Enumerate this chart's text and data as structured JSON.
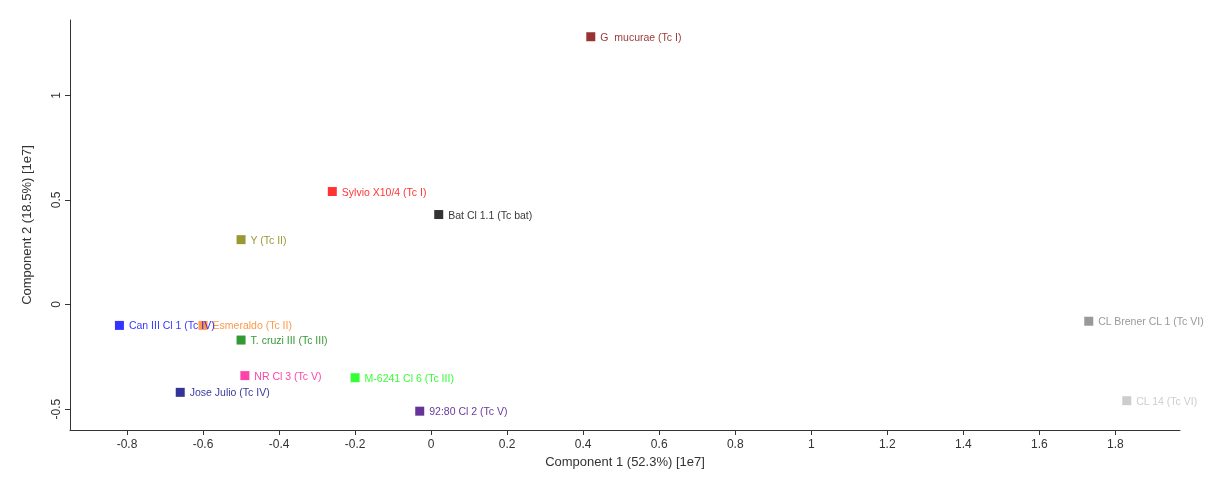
{
  "chart_data": {
    "type": "scatter",
    "xlabel": "Component 1 (52.3%) [1e7]",
    "ylabel": "Component 2 (18.5%) [1e7]",
    "xlim": [
      -0.95,
      1.97
    ],
    "ylim": [
      -0.6,
      1.36
    ],
    "xticks": [
      -0.8,
      -0.6,
      -0.4,
      -0.2,
      0,
      0.2,
      0.4,
      0.6,
      0.8,
      1,
      1.2,
      1.4,
      1.6,
      1.8
    ],
    "yticks": [
      -0.5,
      0,
      0.5,
      1
    ],
    "marker": "square",
    "grid": false,
    "legend": false,
    "series": [
      {
        "name": "G  mucurae (Tc I)",
        "color": "#7f0000",
        "x": [
          0.42
        ],
        "values": [
          1.28
        ]
      },
      {
        "name": "Sylvio X10/4 (Tc I)",
        "color": "#ff0000",
        "x": [
          -0.26
        ],
        "values": [
          0.54
        ]
      },
      {
        "name": "Bat Cl 1.1 (Tc bat)",
        "color": "#000000",
        "x": [
          0.02
        ],
        "values": [
          0.43
        ]
      },
      {
        "name": "Y (Tc II)",
        "color": "#808000",
        "x": [
          -0.5
        ],
        "values": [
          0.31
        ]
      },
      {
        "name": "Esmeraldo (Tc II)",
        "color": "#ff8020",
        "x": [
          -0.6
        ],
        "values": [
          -0.1
        ]
      },
      {
        "name": "Can III Cl 1 (Tc IV)",
        "color": "#0000ff",
        "x": [
          -0.82
        ],
        "values": [
          -0.1
        ]
      },
      {
        "name": "T. cruzi III (Tc III)",
        "color": "#008000",
        "x": [
          -0.5
        ],
        "values": [
          -0.17
        ]
      },
      {
        "name": "NR Cl 3 (Tc V)",
        "color": "#ff1493",
        "x": [
          -0.49
        ],
        "values": [
          -0.34
        ]
      },
      {
        "name": "M-6241 Cl 6 (Tc III)",
        "color": "#00ff00",
        "x": [
          -0.2
        ],
        "values": [
          -0.35
        ]
      },
      {
        "name": "Jose Julio (Tc IV)",
        "color": "#000080",
        "x": [
          -0.66
        ],
        "values": [
          -0.42
        ]
      },
      {
        "name": "92:80 Cl 2 (Tc V)",
        "color": "#400080",
        "x": [
          -0.03
        ],
        "values": [
          -0.51
        ]
      },
      {
        "name": "CL Brener CL 1 (Tc VI)",
        "color": "#808080",
        "x": [
          1.73
        ],
        "values": [
          -0.08
        ]
      },
      {
        "name": "CL 14 (Tc VI)",
        "color": "#c0c0c0",
        "x": [
          1.83
        ],
        "values": [
          -0.46
        ]
      }
    ]
  }
}
